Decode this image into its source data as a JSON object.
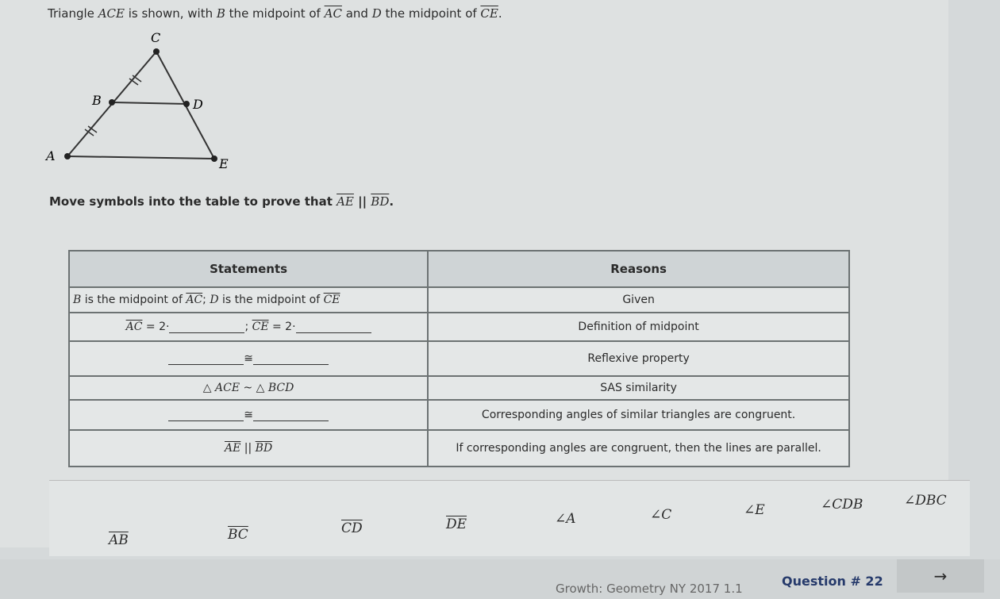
{
  "prompt": {
    "pre": "Triangle ",
    "tri": "ACE",
    "mid1": " is shown, with ",
    "b": "B",
    "mid2": " the midpoint of ",
    "ac": "AC",
    "mid3": " and ",
    "d": "D",
    "mid4": " the midpoint of ",
    "ce": "CE",
    "end": "."
  },
  "diagram": {
    "labels": {
      "A": "A",
      "B": "B",
      "C": "C",
      "D": "D",
      "E": "E"
    }
  },
  "instruction": {
    "pre": "Move symbols into the table to prove that ",
    "ae": "AE",
    "par": " || ",
    "bd": "BD",
    "end": "."
  },
  "table": {
    "headers": {
      "statements": "Statements",
      "reasons": "Reasons"
    },
    "rows": [
      {
        "statement": {
          "b": "B",
          "t1": " is the midpoint of ",
          "ac": "AC",
          "t2": "; ",
          "d": "D",
          "t3": " is the midpoint of ",
          "ce": "CE"
        },
        "reason": "Given"
      },
      {
        "statement": {
          "ac": "AC",
          "eq1": " = 2·",
          "sep": ";",
          "ce": "CE",
          "eq2": " = 2·"
        },
        "reason": "Definition of midpoint"
      },
      {
        "statement": {
          "sym": "≅"
        },
        "reason": "Reflexive property"
      },
      {
        "statement": {
          "text": "△ ACE ~ △ BCD"
        },
        "reason": "SAS similarity"
      },
      {
        "statement": {
          "sym": "≅"
        },
        "reason": "Corresponding angles of similar triangles are congruent."
      },
      {
        "statement": {
          "ae": "AE",
          "par": " || ",
          "bd": "BD"
        },
        "reason": "If corresponding angles are congruent, then the lines are parallel."
      }
    ]
  },
  "symbols": [
    {
      "label": "AB",
      "segment": true
    },
    {
      "label": "BC",
      "segment": true
    },
    {
      "label": "CD",
      "segment": true
    },
    {
      "label": "DE",
      "segment": true
    },
    {
      "label": "∠A",
      "segment": false
    },
    {
      "label": "∠C",
      "segment": false
    },
    {
      "label": "∠E",
      "segment": false
    },
    {
      "label": "∠CDB",
      "segment": false
    },
    {
      "label": "∠DBC",
      "segment": false
    }
  ],
  "footer": {
    "course": "Growth: Geometry NY 2017 1.1",
    "question": "Question # 22",
    "next_icon": "arrow-right-icon",
    "next_glyph": "→"
  }
}
